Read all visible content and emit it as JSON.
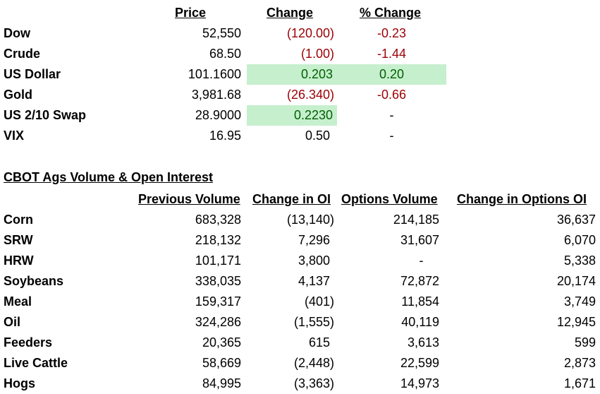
{
  "market": {
    "headers": {
      "price": "Price",
      "change": "Change",
      "pct": "% Change"
    },
    "rows": [
      {
        "name": "Dow",
        "price": "52,550",
        "change": "(120.00)",
        "pct": "-0.23"
      },
      {
        "name": "Crude",
        "price": "68.50",
        "change": "(1.00)",
        "pct": "-1.44"
      },
      {
        "name": "US Dollar",
        "price": "101.1600",
        "change": "0.203",
        "pct": "0.20"
      },
      {
        "name": "Gold",
        "price": "3,981.68",
        "change": "(26.340)",
        "pct": "-0.66"
      },
      {
        "name": "US 2/10 Swap",
        "price": "28.9000",
        "change": "0.2230",
        "pct": "-"
      },
      {
        "name": "VIX",
        "price": "16.95",
        "change": "0.50",
        "pct": "-"
      }
    ]
  },
  "cbot": {
    "title": "CBOT Ags Volume & Open Interest",
    "headers": {
      "prev_volume": "Previous Volume",
      "change_oi": "Change in OI",
      "options_volume": "Options Volume",
      "change_options_oi": "Change in Options OI"
    },
    "rows": [
      {
        "name": "Corn",
        "prev_volume": "683,328",
        "change_oi": "(13,140)",
        "options_volume": "214,185",
        "change_options_oi": "36,637"
      },
      {
        "name": "SRW",
        "prev_volume": "218,132",
        "change_oi": "7,296",
        "options_volume": "31,607",
        "change_options_oi": "6,070"
      },
      {
        "name": "HRW",
        "prev_volume": "101,171",
        "change_oi": "3,800",
        "options_volume": "-",
        "change_options_oi": "5,338"
      },
      {
        "name": "Soybeans",
        "prev_volume": "338,035",
        "change_oi": "4,137",
        "options_volume": "72,872",
        "change_options_oi": "20,174"
      },
      {
        "name": "Meal",
        "prev_volume": "159,317",
        "change_oi": "(401)",
        "options_volume": "11,854",
        "change_options_oi": "3,749"
      },
      {
        "name": "Oil",
        "prev_volume": "324,286",
        "change_oi": "(1,555)",
        "options_volume": "40,119",
        "change_options_oi": "12,945"
      },
      {
        "name": "Feeders",
        "prev_volume": "20,365",
        "change_oi": "615",
        "options_volume": "3,613",
        "change_options_oi": "599"
      },
      {
        "name": "Live Cattle",
        "prev_volume": "58,669",
        "change_oi": "(2,448)",
        "options_volume": "22,599",
        "change_options_oi": "2,873"
      },
      {
        "name": "Hogs",
        "prev_volume": "84,995",
        "change_oi": "(3,363)",
        "options_volume": "14,973",
        "change_options_oi": "1,671"
      }
    ]
  },
  "colors": {
    "negative_text": "#9c0006",
    "positive_text": "#006100",
    "positive_fill": "#c6efce"
  }
}
